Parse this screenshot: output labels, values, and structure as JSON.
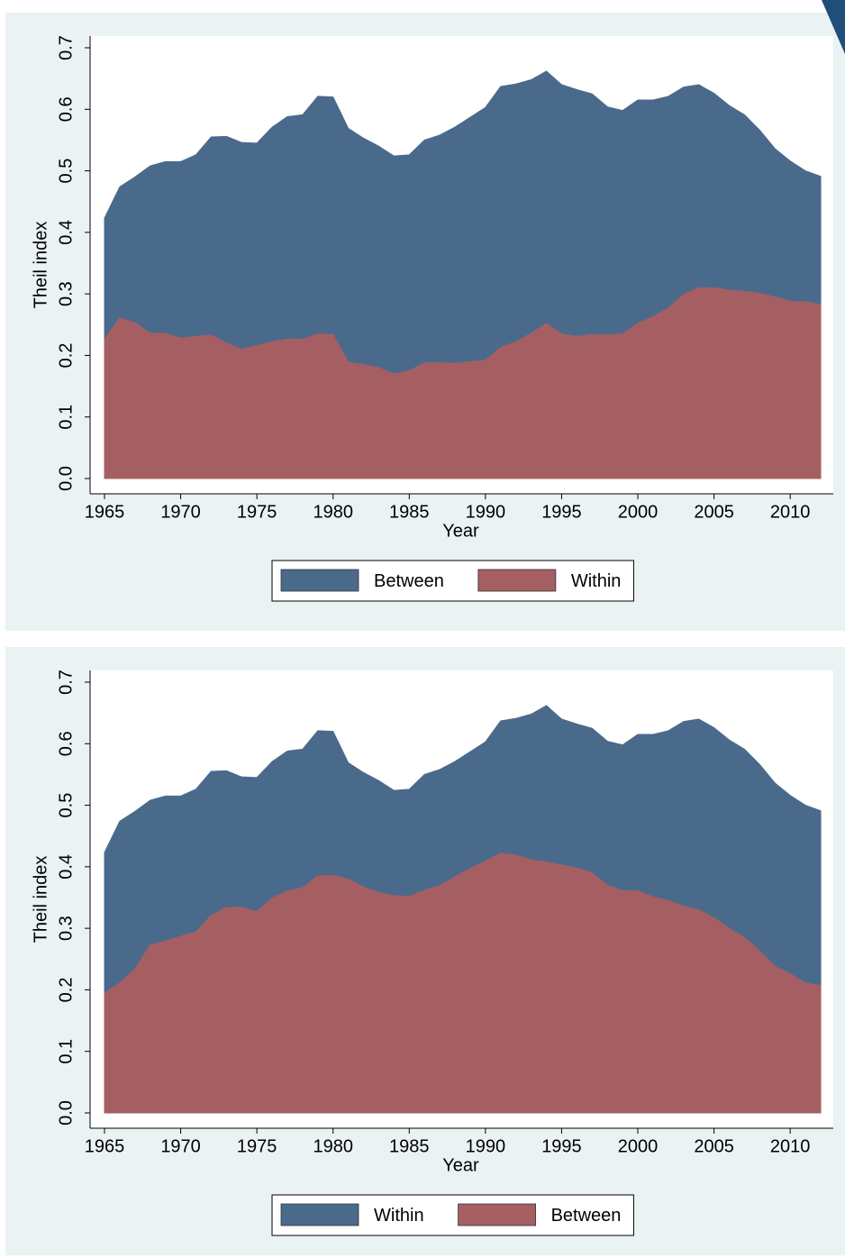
{
  "chart_data": [
    {
      "type": "area",
      "xlabel": "Year",
      "ylabel": "Theil index",
      "x": [
        1965,
        1966,
        1967,
        1968,
        1969,
        1970,
        1971,
        1972,
        1973,
        1974,
        1975,
        1976,
        1977,
        1978,
        1979,
        1980,
        1981,
        1982,
        1983,
        1984,
        1985,
        1986,
        1987,
        1988,
        1989,
        1990,
        1991,
        1992,
        1993,
        1994,
        1995,
        1996,
        1997,
        1998,
        1999,
        2000,
        2001,
        2002,
        2003,
        2004,
        2005,
        2006,
        2007,
        2008,
        2009,
        2010,
        2011,
        2012
      ],
      "series": [
        {
          "name": "Between",
          "color": "#4a6a8c",
          "values": [
            0.423,
            0.474,
            0.49,
            0.508,
            0.515,
            0.515,
            0.526,
            0.555,
            0.556,
            0.546,
            0.545,
            0.571,
            0.588,
            0.591,
            0.621,
            0.62,
            0.569,
            0.553,
            0.54,
            0.524,
            0.526,
            0.55,
            0.558,
            0.571,
            0.587,
            0.603,
            0.637,
            0.641,
            0.648,
            0.662,
            0.64,
            0.632,
            0.625,
            0.604,
            0.598,
            0.615,
            0.615,
            0.621,
            0.636,
            0.64,
            0.626,
            0.606,
            0.591,
            0.566,
            0.536,
            0.516,
            0.5,
            0.491
          ]
        },
        {
          "name": "Within",
          "color": "#a55f62",
          "values": [
            0.226,
            0.261,
            0.253,
            0.236,
            0.236,
            0.228,
            0.231,
            0.233,
            0.22,
            0.21,
            0.216,
            0.222,
            0.227,
            0.226,
            0.235,
            0.234,
            0.189,
            0.185,
            0.18,
            0.17,
            0.175,
            0.188,
            0.188,
            0.187,
            0.19,
            0.192,
            0.213,
            0.222,
            0.236,
            0.252,
            0.235,
            0.231,
            0.234,
            0.233,
            0.235,
            0.252,
            0.263,
            0.277,
            0.299,
            0.31,
            0.31,
            0.306,
            0.304,
            0.301,
            0.295,
            0.288,
            0.287,
            0.283
          ]
        }
      ],
      "xlim": [
        1965,
        2012
      ],
      "xticks": [
        1965,
        1970,
        1975,
        1980,
        1985,
        1990,
        1995,
        2000,
        2005,
        2010
      ],
      "ylim": [
        0,
        0.7
      ],
      "yticks": [
        {
          "value": 0,
          "label": "0.0"
        },
        0.1,
        0.2,
        0.3,
        0.4,
        0.5,
        0.6,
        0.7
      ],
      "legend": "bottom"
    },
    {
      "type": "area",
      "xlabel": "Year",
      "ylabel": "Theil index",
      "x": [
        1965,
        1966,
        1967,
        1968,
        1969,
        1970,
        1971,
        1972,
        1973,
        1974,
        1975,
        1976,
        1977,
        1978,
        1979,
        1980,
        1981,
        1982,
        1983,
        1984,
        1985,
        1986,
        1987,
        1988,
        1989,
        1990,
        1991,
        1992,
        1993,
        1994,
        1995,
        1996,
        1997,
        1998,
        1999,
        2000,
        2001,
        2002,
        2003,
        2004,
        2005,
        2006,
        2007,
        2008,
        2009,
        2010,
        2011,
        2012
      ],
      "series": [
        {
          "name": "Within",
          "color": "#4a6a8c",
          "values": [
            0.423,
            0.474,
            0.49,
            0.508,
            0.515,
            0.515,
            0.526,
            0.555,
            0.556,
            0.546,
            0.545,
            0.571,
            0.588,
            0.591,
            0.621,
            0.62,
            0.569,
            0.553,
            0.54,
            0.524,
            0.526,
            0.55,
            0.558,
            0.571,
            0.587,
            0.603,
            0.637,
            0.641,
            0.648,
            0.662,
            0.64,
            0.632,
            0.625,
            0.604,
            0.598,
            0.615,
            0.615,
            0.621,
            0.636,
            0.64,
            0.626,
            0.606,
            0.591,
            0.566,
            0.536,
            0.516,
            0.5,
            0.491
          ]
        },
        {
          "name": "Between",
          "color": "#a55f62",
          "values": [
            0.195,
            0.211,
            0.234,
            0.273,
            0.279,
            0.287,
            0.294,
            0.321,
            0.334,
            0.334,
            0.327,
            0.349,
            0.361,
            0.366,
            0.385,
            0.386,
            0.38,
            0.367,
            0.358,
            0.353,
            0.352,
            0.362,
            0.369,
            0.384,
            0.397,
            0.409,
            0.422,
            0.419,
            0.411,
            0.408,
            0.403,
            0.398,
            0.39,
            0.37,
            0.361,
            0.361,
            0.351,
            0.345,
            0.336,
            0.33,
            0.317,
            0.3,
            0.285,
            0.263,
            0.238,
            0.226,
            0.211,
            0.207
          ]
        }
      ],
      "xlim": [
        1965,
        2012
      ],
      "xticks": [
        1965,
        1970,
        1975,
        1980,
        1985,
        1990,
        1995,
        2000,
        2005,
        2010
      ],
      "ylim": [
        0,
        0.7
      ],
      "yticks": [
        {
          "value": 0,
          "label": "0.0"
        },
        0.1,
        0.2,
        0.3,
        0.4,
        0.5,
        0.6,
        0.7
      ],
      "legend": "bottom"
    }
  ]
}
